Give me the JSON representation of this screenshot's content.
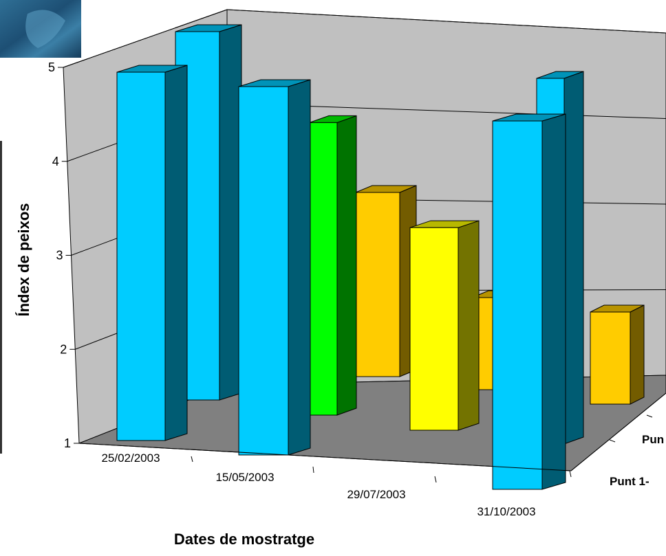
{
  "chart_data": {
    "type": "bar",
    "subtype": "3d-column",
    "xlabel": "Dates de mostratge",
    "ylabel": "Índex de peixos",
    "ylim": [
      1,
      5
    ],
    "yticks": [
      1,
      2,
      3,
      4,
      5
    ],
    "grid": true,
    "categories": [
      "25/02/2003",
      "15/05/2003",
      "29/07/2003",
      "31/10/2003"
    ],
    "series": [
      {
        "name": "Punt 1-",
        "values": [
          5,
          5,
          3.2,
          5
        ],
        "colors": [
          "#00ccff",
          "#00ccff",
          "#ffff00",
          "#00ccff"
        ]
      },
      {
        "name": "Pun",
        "values": [
          5,
          3,
          2,
          2
        ],
        "colors": [
          "#00ccff",
          "#ffcc00",
          "#ffcc00",
          "#ffcc00"
        ]
      }
    ],
    "extra_bars": [
      {
        "category": "15/05/2003",
        "value": 4.2,
        "color": "#00ff00"
      },
      {
        "category": "31/10/2003",
        "value": 5,
        "color": "#00ccff"
      }
    ]
  }
}
